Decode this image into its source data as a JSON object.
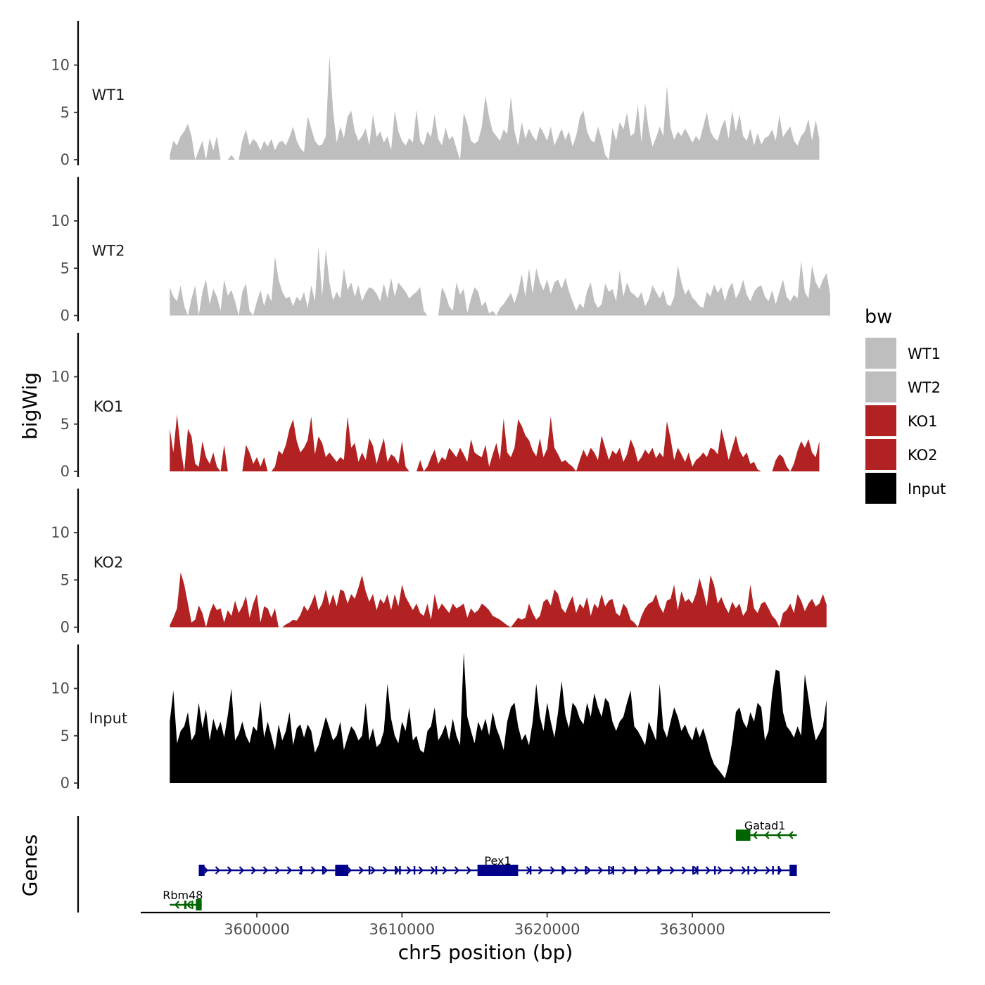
{
  "chart_data": {
    "type": "area",
    "title": "",
    "xlabel": "chr5 position (bp)",
    "ylabel": "bigWig",
    "genes_label": "Genes",
    "xlim": [
      3592000,
      3639500
    ],
    "x_ticks": [
      3600000,
      3610000,
      3620000,
      3630000
    ],
    "x_tick_labels": [
      "3600000",
      "3610000",
      "3620000",
      "3630000"
    ],
    "ylim": [
      0,
      14.5
    ],
    "y_ticks": [
      0,
      5,
      10
    ],
    "y_tick_labels": [
      "0",
      "5",
      "10"
    ],
    "legend": {
      "title": "bw",
      "position": "right",
      "entries": [
        {
          "label": "WT1",
          "color": "#bebebe"
        },
        {
          "label": "WT2",
          "color": "#bebebe"
        },
        {
          "label": "KO1",
          "color": "#b22222"
        },
        {
          "label": "KO2",
          "color": "#b22222"
        },
        {
          "label": "Input",
          "color": "#000000"
        }
      ]
    },
    "series": [
      {
        "name": "WT1",
        "color": "#bebebe",
        "x_start": 3594000,
        "step": 250,
        "values": [
          0.5,
          2,
          1.5,
          2.5,
          3,
          3.8,
          2.5,
          0,
          1,
          2,
          0,
          2.3,
          1,
          2.5,
          0,
          0,
          0,
          0.5,
          0,
          0,
          2,
          3.2,
          1.5,
          2.2,
          1.8,
          1,
          2,
          1.4,
          2.2,
          1,
          1.8,
          2,
          1.5,
          2.4,
          3.5,
          2,
          1.2,
          0.8,
          4.6,
          3.3,
          2,
          1.5,
          1.6,
          2.5,
          11,
          5.2,
          1.8,
          3.5,
          2.3,
          4.5,
          5.2,
          3,
          2,
          2.5,
          3.3,
          1.5,
          4.8,
          2.4,
          3,
          1.8,
          2.5,
          1,
          5.2,
          3,
          2,
          1.5,
          2.3,
          1.8,
          5.3,
          2,
          1.5,
          3,
          2.4,
          4.8,
          2.2,
          1.5,
          3.4,
          2.1,
          2.5,
          1.2,
          0,
          5,
          3.8,
          2,
          1.7,
          2,
          3.5,
          6.8,
          4.5,
          3,
          2.5,
          2,
          3.2,
          2.7,
          6.7,
          3,
          1.5,
          4,
          2.2,
          3.3,
          2.5,
          2,
          3.5,
          2.8,
          2,
          3.5,
          1.5,
          2.4,
          3.3,
          2.1,
          3,
          1.4,
          2.5,
          4.5,
          5.2,
          3,
          2.1,
          1.8,
          3.5,
          2.2,
          0.5,
          0,
          3.4,
          2,
          4,
          3.2,
          5,
          2.5,
          2.8,
          5.8,
          1.8,
          6,
          3.2,
          1.4,
          2.3,
          3.5,
          2.5,
          7.8,
          3.4,
          2.1,
          3,
          2.5,
          3.3,
          2.6,
          1.8,
          2.5,
          2,
          3.5,
          5,
          3,
          2.3,
          2,
          3.4,
          4.3,
          2.2,
          5.2,
          3,
          4.8,
          2.5,
          2,
          3.3,
          1.5,
          2.8,
          1.6,
          2.3,
          2.5,
          3.2,
          2,
          4.7,
          2.4,
          3,
          3.5,
          2,
          1.5,
          2.5,
          3,
          4.3,
          2,
          4.2,
          2.2
        ]
      },
      {
        "name": "WT2",
        "color": "#bebebe",
        "x_start": 3594000,
        "step": 250,
        "values": [
          3,
          2,
          1.5,
          3.2,
          1,
          0,
          1.8,
          3.2,
          0,
          2.5,
          3.8,
          1.2,
          2.8,
          2,
          0.5,
          3.8,
          2.1,
          2.7,
          1.5,
          0,
          2.5,
          3.4,
          0.5,
          0,
          1.5,
          2.7,
          1,
          2.4,
          1.5,
          6.3,
          3.8,
          2.5,
          1.8,
          2,
          1,
          2,
          1.5,
          2.5,
          0.8,
          3.2,
          1.5,
          7.3,
          2,
          7,
          3.5,
          1.6,
          2.5,
          1.8,
          5,
          2.7,
          3.5,
          2,
          3.2,
          1.5,
          2.4,
          3,
          2.8,
          2.3,
          1.5,
          3.4,
          1.8,
          4,
          2,
          3.5,
          3,
          2.5,
          1.8,
          2.2,
          2.5,
          3,
          0.5,
          0,
          0,
          0,
          0,
          3,
          2.2,
          1,
          0.5,
          3.5,
          2.2,
          2.8,
          0.3,
          1.8,
          3,
          2.5,
          1,
          1.5,
          0.2,
          0.5,
          0,
          0.8,
          1.2,
          1.8,
          2.4,
          1.3,
          2.5,
          4.4,
          2,
          5,
          2.3,
          5,
          3.5,
          2.7,
          3.8,
          2.3,
          3.5,
          3.8,
          2.8,
          4,
          2.6,
          1.5,
          0.5,
          1.3,
          0.8,
          2.6,
          3.5,
          1.5,
          0.8,
          1.2,
          3.4,
          2.5,
          2.8,
          1.5,
          4.8,
          2,
          3.5,
          2.5,
          2.2,
          1.8,
          2.5,
          1,
          1.7,
          3.2,
          2.5,
          1.8,
          2.7,
          1.2,
          1,
          2,
          5.3,
          3.5,
          2.2,
          2.8,
          1.9,
          1.5,
          1,
          0.8,
          2.5,
          2,
          3.3,
          2.4,
          3,
          1.5,
          2.8,
          3.5,
          1.8,
          2.5,
          3.8,
          2.2,
          1.5,
          2.5,
          3,
          3.2,
          2,
          1.5,
          2.7,
          1.2,
          2.5,
          3.8,
          2,
          1.5,
          2.2,
          1.8,
          5.8,
          2.5,
          1.8,
          5.3,
          3.5,
          2.8,
          3.8,
          4.5,
          2.2
        ]
      },
      {
        "name": "KO1",
        "color": "#b22222",
        "x_start": 3594000,
        "step": 250,
        "values": [
          4.5,
          2,
          6,
          2.5,
          0,
          4.5,
          3.7,
          0.8,
          0.5,
          3.2,
          1.5,
          0.8,
          2,
          0.5,
          0,
          2.8,
          0,
          0,
          0,
          0,
          0,
          2.8,
          2,
          0.8,
          1.5,
          0.5,
          1.5,
          0,
          0,
          0.5,
          2.2,
          1.8,
          2.8,
          4.5,
          5.5,
          3.2,
          2,
          2.5,
          3.3,
          5.8,
          1.8,
          3.7,
          3,
          1.5,
          2,
          1.5,
          1,
          1.5,
          1.2,
          5.8,
          2.5,
          3,
          1,
          2,
          1.2,
          3.5,
          2.7,
          0.8,
          2.2,
          3.5,
          1,
          1.8,
          1.5,
          0.8,
          3.2,
          0.5,
          0,
          0,
          0,
          1.2,
          0,
          0.5,
          1.5,
          2.3,
          0.8,
          1.5,
          1.2,
          2.5,
          2,
          1.5,
          2.5,
          1.8,
          1,
          3.4,
          2,
          1.7,
          1.5,
          2.8,
          0.5,
          1.8,
          3,
          1.2,
          5.6,
          2,
          1.5,
          2.5,
          5.5,
          4.8,
          3.8,
          3.3,
          2.2,
          1.6,
          3.5,
          1.5,
          2.4,
          5.8,
          2.5,
          1.8,
          1,
          1.2,
          0.8,
          0.5,
          0,
          1.2,
          2.3,
          1.5,
          2.5,
          2,
          1.2,
          3.8,
          2.5,
          1.2,
          2.2,
          1.8,
          2.5,
          1,
          1.8,
          3.4,
          2.5,
          1,
          1.5,
          2.3,
          1.8,
          2.5,
          1.4,
          2,
          1.5,
          5.3,
          3.5,
          1.2,
          2.5,
          1.8,
          1,
          2,
          0.5,
          1.2,
          1.5,
          2,
          1.5,
          2.5,
          2.3,
          1.8,
          4.5,
          3,
          1.2,
          2.5,
          3.8,
          2.2,
          1.5,
          2,
          0.8,
          1,
          0.2,
          0,
          0,
          0,
          0,
          1.2,
          1.8,
          1.5,
          0.5,
          0,
          0.8,
          2.2,
          3.2,
          2.5,
          3.4,
          2,
          1.5,
          3.2
        ]
      },
      {
        "name": "KO2",
        "color": "#b22222",
        "x_start": 3594000,
        "step": 250,
        "values": [
          0.2,
          1,
          2,
          5.8,
          4.5,
          2.5,
          0.5,
          0.8,
          2.3,
          1.5,
          0,
          1.5,
          2.5,
          1.8,
          2,
          0.5,
          1.8,
          1.2,
          2.8,
          1.5,
          2.2,
          3.3,
          1,
          2.5,
          3.5,
          0.5,
          2.2,
          2,
          1,
          2,
          0,
          0,
          0.3,
          0.5,
          0.8,
          0.7,
          1.3,
          2.3,
          1.7,
          2.5,
          3.5,
          1.8,
          2.5,
          4,
          2.3,
          3.5,
          2.2,
          4,
          3.8,
          2.5,
          3.5,
          3,
          4.2,
          5.5,
          3.8,
          2.7,
          3.5,
          1.8,
          3,
          2.5,
          3.5,
          1.8,
          3.5,
          2.2,
          4.5,
          3.2,
          2.5,
          1.8,
          2.5,
          1.5,
          1.2,
          2.5,
          0.8,
          3.5,
          1.8,
          2.5,
          2,
          1.5,
          2.5,
          2,
          2.2,
          2.5,
          1,
          2,
          1.5,
          1.8,
          2.5,
          2.2,
          1.8,
          1.2,
          1,
          0.8,
          0.5,
          0.2,
          0,
          0.5,
          1,
          0.8,
          1,
          2.5,
          1.5,
          0.8,
          1.2,
          2.7,
          3,
          2.3,
          4,
          3.5,
          2,
          1.5,
          2.5,
          3.3,
          1.5,
          2.5,
          2,
          3.2,
          1.2,
          2.5,
          2,
          3.5,
          2.2,
          2.8,
          3,
          1.5,
          1.2,
          2.5,
          2,
          0.8,
          0.5,
          0,
          1.2,
          2,
          2.5,
          2.7,
          3.5,
          2.2,
          1.5,
          2.8,
          3,
          4.5,
          1.8,
          3.8,
          2.7,
          3,
          2.5,
          3.5,
          5.2,
          3.8,
          2.2,
          5.5,
          4.5,
          2.5,
          3.2,
          2.2,
          1.5,
          2.7,
          2,
          2.5,
          1.2,
          1.8,
          4.5,
          2,
          1.5,
          2.5,
          2.7,
          2,
          1.2,
          0.8,
          0,
          1.5,
          1.8,
          2.5,
          1.5,
          3.5,
          2.8,
          1.7,
          2.5,
          3,
          2.2,
          2.5,
          3.5,
          2.4
        ]
      },
      {
        "name": "Input",
        "color": "#000000",
        "x_start": 3594000,
        "step": 250,
        "values": [
          6.5,
          9.8,
          4.2,
          5.5,
          6,
          7.5,
          4.5,
          5.2,
          8.5,
          5.8,
          7.8,
          4.5,
          6.8,
          5.5,
          6.5,
          4.8,
          7.2,
          10,
          4.5,
          5.2,
          6.5,
          5,
          4.2,
          6,
          5.5,
          8.7,
          4.8,
          6.5,
          5,
          3.5,
          6.2,
          4.5,
          5.5,
          7.5,
          4,
          5.8,
          6.2,
          4.8,
          6.2,
          5.5,
          3.2,
          4,
          5.5,
          7,
          5.8,
          4.5,
          5,
          6.5,
          3.5,
          4.8,
          6,
          5.5,
          4.5,
          5,
          8.5,
          4.5,
          5.8,
          3.8,
          4.2,
          5.5,
          10.5,
          6.8,
          5,
          4.2,
          6.5,
          5.5,
          8,
          4.5,
          5,
          3.5,
          3.2,
          5.5,
          6,
          8,
          4.5,
          5.2,
          6.2,
          4.5,
          6.8,
          5,
          4,
          13.8,
          7,
          5.5,
          4.2,
          6.5,
          5.5,
          6.8,
          5,
          7.5,
          5.8,
          4.8,
          3.5,
          6.5,
          8,
          8.5,
          6,
          4.5,
          5.2,
          4,
          6.5,
          10.5,
          7,
          5.5,
          8.5,
          6.5,
          4.8,
          7.5,
          10.8,
          7.2,
          5.8,
          8.5,
          8,
          6.8,
          6.2,
          8.5,
          7,
          9.5,
          8,
          7,
          9,
          8.5,
          6.5,
          5.5,
          6.5,
          7,
          8.5,
          9.8,
          6,
          5.5,
          4.8,
          4,
          6.5,
          5.5,
          4.5,
          10.5,
          5.8,
          4.8,
          6.5,
          8,
          7,
          5.5,
          6.2,
          5.2,
          4.5,
          6,
          4.8,
          5.8,
          4.5,
          3,
          2,
          1.5,
          1,
          0.5,
          2,
          4.5,
          7.5,
          8,
          6.5,
          5.8,
          7.5,
          6.5,
          8.5,
          8,
          4.5,
          5.5,
          9.5,
          12,
          11.8,
          7.5,
          6,
          5.5,
          4.8,
          6,
          5,
          11.5,
          9,
          6.5,
          4.5,
          5.2,
          6,
          8.8
        ]
      }
    ],
    "gene_track": {
      "genes": [
        {
          "name": "Rbm48",
          "start": 3594000,
          "end": 3596200,
          "strand": "-",
          "color": "#006400",
          "row": 3,
          "exons": [
            [
              3595000,
              3595150
            ],
            [
              3595500,
              3595600
            ],
            [
              3595800,
              3596200
            ]
          ]
        },
        {
          "name": "Pex1",
          "start": 3596000,
          "end": 3637200,
          "strand": "+",
          "color": "#00008b",
          "row": 2,
          "exons": [
            [
              3596000,
              3596400
            ],
            [
              3603000,
              3603100
            ],
            [
              3604500,
              3604600
            ],
            [
              3605400,
              3606300
            ],
            [
              3607700,
              3607800
            ],
            [
              3609500,
              3609600
            ],
            [
              3609800,
              3609900
            ],
            [
              3610800,
              3610900
            ],
            [
              3612300,
              3612400
            ],
            [
              3615200,
              3618000
            ],
            [
              3618800,
              3618900
            ],
            [
              3621000,
              3621100
            ],
            [
              3622600,
              3622700
            ],
            [
              3624200,
              3624300
            ],
            [
              3624500,
              3624600
            ],
            [
              3626000,
              3626100
            ],
            [
              3627600,
              3627700
            ],
            [
              3630000,
              3630100
            ],
            [
              3630300,
              3630400
            ],
            [
              3631500,
              3631600
            ],
            [
              3633800,
              3633900
            ],
            [
              3635500,
              3635600
            ],
            [
              3635900,
              3636000
            ],
            [
              3636700,
              3637200
            ]
          ]
        },
        {
          "name": "Gatad1",
          "start": 3633000,
          "end": 3637200,
          "strand": "-",
          "color": "#006400",
          "row": 1,
          "exons": [
            [
              3633000,
              3634000
            ]
          ]
        }
      ]
    }
  }
}
